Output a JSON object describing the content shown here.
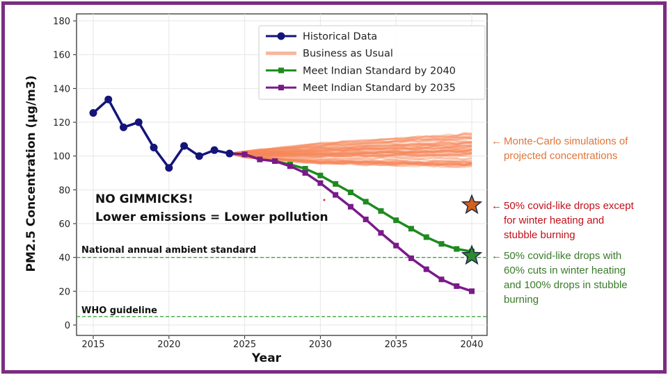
{
  "chart_data": {
    "type": "line",
    "title": "",
    "xlabel": "Year",
    "ylabel": "PM2.5 Concentration (µg/m3)",
    "xlim": [
      2014,
      2041
    ],
    "ylim": [
      0,
      180
    ],
    "xticks": [
      2015,
      2020,
      2025,
      2030,
      2035,
      2040
    ],
    "yticks": [
      0,
      20,
      40,
      60,
      80,
      100,
      120,
      140,
      160,
      180
    ],
    "grid": true,
    "legend_position": "top-right",
    "series": [
      {
        "name": "Historical Data",
        "color": "#14147a",
        "marker": "circle",
        "x": [
          2015,
          2016,
          2017,
          2018,
          2019,
          2020,
          2021,
          2022,
          2023,
          2024
        ],
        "y": [
          125.5,
          133.5,
          117,
          120,
          105,
          93,
          106,
          100,
          103.5,
          101.5
        ]
      },
      {
        "name": "Business as Usual",
        "color": "#f5865a",
        "type": "band",
        "x": [
          2024,
          2025,
          2030,
          2035,
          2040
        ],
        "low": [
          101.5,
          99,
          95,
          94,
          93
        ],
        "high": [
          101.5,
          103,
          108,
          111,
          114
        ]
      },
      {
        "name": "Meet Indian Standard by 2040",
        "color": "#1f8a1f",
        "marker": "square",
        "x": [
          2024,
          2025,
          2026,
          2027,
          2028,
          2029,
          2030,
          2031,
          2032,
          2033,
          2034,
          2035,
          2036,
          2037,
          2038,
          2039,
          2040
        ],
        "y": [
          101.5,
          101,
          98,
          97,
          95,
          92.5,
          88.5,
          83.5,
          78.5,
          73,
          67.5,
          62,
          57,
          52,
          48,
          45,
          43.5
        ]
      },
      {
        "name": "Meet Indian Standard by 2035",
        "color": "#7a1a8a",
        "marker": "square",
        "x": [
          2024,
          2025,
          2026,
          2027,
          2028,
          2029,
          2030,
          2031,
          2032,
          2033,
          2034,
          2035,
          2036,
          2037,
          2038,
          2039,
          2040
        ],
        "y": [
          101.5,
          101,
          98,
          97,
          94,
          90,
          84,
          77,
          70,
          62.5,
          54.5,
          47,
          39.5,
          33,
          27,
          23,
          20
        ]
      }
    ],
    "reference_lines": [
      {
        "label": "National annual ambient standard",
        "y": 40,
        "color": "#3aa63a"
      },
      {
        "label": "WHO guideline",
        "y": 5,
        "color": "#3aa63a"
      }
    ],
    "star_markers": [
      {
        "x": 2040,
        "y": 71,
        "color": "#d2601f"
      },
      {
        "x": 2040,
        "y": 41,
        "color": "#2f8a2f"
      }
    ],
    "plot_annotation": [
      "NO GIMMICKS!",
      "Lower emissions = Lower pollution"
    ]
  },
  "annotations": [
    {
      "arrow": "🡐",
      "lines": [
        "Monte-Carlo simulations of",
        "projected concentrations"
      ],
      "color": "#e0743a"
    },
    {
      "arrow": "🡐",
      "lines": [
        "50% covid-like drops except",
        "for winter heating and",
        "stubble burning"
      ],
      "color": "#c0101a"
    },
    {
      "arrow": "🡐",
      "lines": [
        "50% covid-like drops with",
        "60% cuts in winter heating",
        "and 100% drops in stubble",
        "burning"
      ],
      "color": "#3a7a2a"
    }
  ],
  "colors": {
    "frame": "#7b2d80"
  }
}
